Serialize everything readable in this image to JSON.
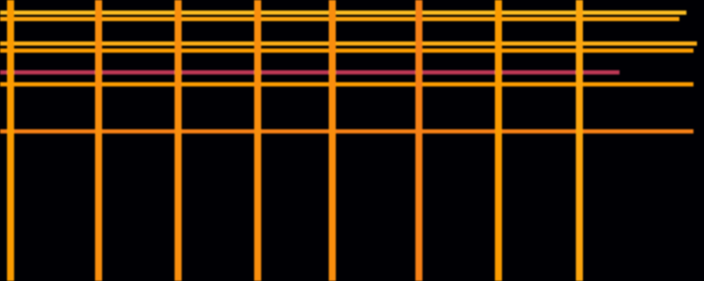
{
  "chart_data": {
    "type": "spectrogram",
    "tick_labels": false,
    "color": "inferno",
    "xlim": [
      0,
      100
    ],
    "ylim": [
      0,
      100
    ],
    "zlim": [
      0,
      1
    ],
    "onsets": {
      "x": [
        1.5,
        14.0,
        25.3,
        36.6,
        47.2,
        59.5,
        70.8,
        82.3
      ],
      "level": [
        0.78,
        0.75,
        0.75,
        0.75,
        0.75,
        0.72,
        0.78,
        0.8
      ]
    },
    "partials": {
      "y": [
        95.5,
        93.25,
        84.5,
        82.0,
        74.25,
        70.0,
        53.25
      ],
      "end": [
        97.5,
        96.5,
        99.0,
        98.5,
        88.0,
        98.5,
        98.5
      ],
      "level": [
        0.85,
        0.8,
        0.82,
        0.78,
        0.5,
        0.78,
        0.72
      ]
    }
  }
}
